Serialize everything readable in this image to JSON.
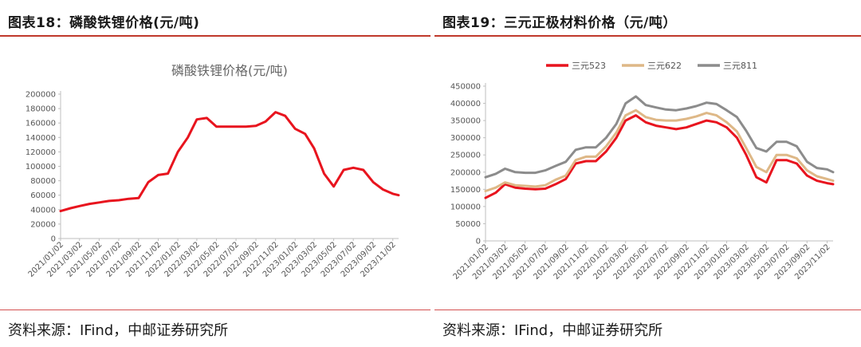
{
  "left_panel": {
    "header_title": "图表18：磷酸铁锂价格(元/吨)",
    "source": "资料来源：IFind，中邮证券研究所"
  },
  "right_panel": {
    "header_title": "图表19：三元正极材料价格（元/吨）",
    "source": "资料来源：IFind，中邮证券研究所"
  },
  "colors": {
    "red": "#e8141e",
    "tan": "#deb887",
    "gray": "#8c8c8c",
    "accent_rule": "#c0392b"
  },
  "chart_data": [
    {
      "type": "line",
      "title": "磷酸铁锂价格(元/吨)",
      "x_labels": [
        "2021/01/02",
        "2021/03/02",
        "2021/05/02",
        "2021/07/02",
        "2021/09/02",
        "2021/11/02",
        "2022/01/02",
        "2022/03/02",
        "2022/05/02",
        "2022/07/02",
        "2022/09/02",
        "2022/11/02",
        "2023/01/02",
        "2023/03/02",
        "2023/05/02",
        "2023/07/02",
        "2023/09/02",
        "2023/11/02"
      ],
      "y_ticks": [
        0,
        20000,
        40000,
        60000,
        80000,
        100000,
        120000,
        140000,
        160000,
        180000,
        200000
      ],
      "ylim": [
        0,
        200000
      ],
      "legend": "none",
      "series": [
        {
          "color": "#e8141e",
          "points": [
            [
              "2021/01/02",
              38000
            ],
            [
              "2021/02/02",
              42000
            ],
            [
              "2021/03/02",
              45000
            ],
            [
              "2021/04/02",
              48000
            ],
            [
              "2021/05/02",
              50000
            ],
            [
              "2021/06/02",
              52000
            ],
            [
              "2021/07/02",
              53000
            ],
            [
              "2021/08/02",
              55000
            ],
            [
              "2021/09/02",
              56000
            ],
            [
              "2021/10/02",
              78000
            ],
            [
              "2021/11/02",
              88000
            ],
            [
              "2021/12/02",
              90000
            ],
            [
              "2022/01/02",
              120000
            ],
            [
              "2022/02/02",
              140000
            ],
            [
              "2022/03/02",
              165000
            ],
            [
              "2022/04/02",
              167000
            ],
            [
              "2022/05/02",
              155000
            ],
            [
              "2022/06/02",
              155000
            ],
            [
              "2022/07/02",
              155000
            ],
            [
              "2022/08/02",
              155000
            ],
            [
              "2022/09/02",
              156000
            ],
            [
              "2022/10/02",
              162000
            ],
            [
              "2022/11/02",
              175000
            ],
            [
              "2022/12/02",
              170000
            ],
            [
              "2023/01/02",
              152000
            ],
            [
              "2023/02/02",
              145000
            ],
            [
              "2023/03/02",
              125000
            ],
            [
              "2023/04/02",
              90000
            ],
            [
              "2023/05/02",
              72000
            ],
            [
              "2023/06/02",
              95000
            ],
            [
              "2023/07/02",
              98000
            ],
            [
              "2023/08/02",
              95000
            ],
            [
              "2023/09/02",
              78000
            ],
            [
              "2023/10/02",
              68000
            ],
            [
              "2023/11/02",
              62000
            ],
            [
              "2023/11/20",
              60000
            ]
          ]
        }
      ]
    },
    {
      "type": "line",
      "title": "三元正极材料价格（元/吨）",
      "x_labels": [
        "2021/01/02",
        "2021/03/02",
        "2021/05/02",
        "2021/07/02",
        "2021/09/02",
        "2021/11/02",
        "2022/01/02",
        "2022/03/02",
        "2022/05/02",
        "2022/07/02",
        "2022/09/02",
        "2022/11/02",
        "2023/01/02",
        "2023/03/02",
        "2023/05/02",
        "2023/07/02",
        "2023/09/02",
        "2023/11/02"
      ],
      "y_ticks": [
        0,
        50000,
        100000,
        150000,
        200000,
        250000,
        300000,
        350000,
        400000,
        450000
      ],
      "ylim": [
        0,
        450000
      ],
      "legend": "top",
      "series": [
        {
          "name": "三元523",
          "color": "#e8141e",
          "points": [
            [
              "2021/01/02",
              125000
            ],
            [
              "2021/02/02",
              140000
            ],
            [
              "2021/03/02",
              165000
            ],
            [
              "2021/04/02",
              155000
            ],
            [
              "2021/05/02",
              152000
            ],
            [
              "2021/06/02",
              150000
            ],
            [
              "2021/07/02",
              152000
            ],
            [
              "2021/08/02",
              165000
            ],
            [
              "2021/09/02",
              180000
            ],
            [
              "2021/10/02",
              225000
            ],
            [
              "2021/11/02",
              232000
            ],
            [
              "2021/12/02",
              232000
            ],
            [
              "2022/01/02",
              260000
            ],
            [
              "2022/02/02",
              300000
            ],
            [
              "2022/03/02",
              350000
            ],
            [
              "2022/04/02",
              365000
            ],
            [
              "2022/05/02",
              345000
            ],
            [
              "2022/06/02",
              335000
            ],
            [
              "2022/07/02",
              330000
            ],
            [
              "2022/08/02",
              325000
            ],
            [
              "2022/09/02",
              330000
            ],
            [
              "2022/10/02",
              340000
            ],
            [
              "2022/11/02",
              350000
            ],
            [
              "2022/12/02",
              345000
            ],
            [
              "2023/01/02",
              330000
            ],
            [
              "2023/02/02",
              300000
            ],
            [
              "2023/03/02",
              250000
            ],
            [
              "2023/04/02",
              185000
            ],
            [
              "2023/05/02",
              170000
            ],
            [
              "2023/06/02",
              235000
            ],
            [
              "2023/07/02",
              235000
            ],
            [
              "2023/08/02",
              225000
            ],
            [
              "2023/09/02",
              190000
            ],
            [
              "2023/10/02",
              175000
            ],
            [
              "2023/11/02",
              168000
            ],
            [
              "2023/11/20",
              165000
            ]
          ]
        },
        {
          "name": "三元622",
          "color": "#deb887",
          "points": [
            [
              "2021/01/02",
              145000
            ],
            [
              "2021/02/02",
              155000
            ],
            [
              "2021/03/02",
              170000
            ],
            [
              "2021/04/02",
              162000
            ],
            [
              "2021/05/02",
              160000
            ],
            [
              "2021/06/02",
              158000
            ],
            [
              "2021/07/02",
              162000
            ],
            [
              "2021/08/02",
              178000
            ],
            [
              "2021/09/02",
              190000
            ],
            [
              "2021/10/02",
              235000
            ],
            [
              "2021/11/02",
              245000
            ],
            [
              "2021/12/02",
              245000
            ],
            [
              "2022/01/02",
              275000
            ],
            [
              "2022/02/02",
              315000
            ],
            [
              "2022/03/02",
              365000
            ],
            [
              "2022/04/02",
              380000
            ],
            [
              "2022/05/02",
              360000
            ],
            [
              "2022/06/02",
              352000
            ],
            [
              "2022/07/02",
              350000
            ],
            [
              "2022/08/02",
              350000
            ],
            [
              "2022/09/02",
              355000
            ],
            [
              "2022/10/02",
              362000
            ],
            [
              "2022/11/02",
              372000
            ],
            [
              "2022/12/02",
              365000
            ],
            [
              "2023/01/02",
              345000
            ],
            [
              "2023/02/02",
              318000
            ],
            [
              "2023/03/02",
              270000
            ],
            [
              "2023/04/02",
              215000
            ],
            [
              "2023/05/02",
              200000
            ],
            [
              "2023/06/02",
              250000
            ],
            [
              "2023/07/02",
              250000
            ],
            [
              "2023/08/02",
              240000
            ],
            [
              "2023/09/02",
              205000
            ],
            [
              "2023/10/02",
              188000
            ],
            [
              "2023/11/02",
              180000
            ],
            [
              "2023/11/20",
              175000
            ]
          ]
        },
        {
          "name": "三元811",
          "color": "#8c8c8c",
          "points": [
            [
              "2021/01/02",
              185000
            ],
            [
              "2021/02/02",
              195000
            ],
            [
              "2021/03/02",
              210000
            ],
            [
              "2021/04/02",
              200000
            ],
            [
              "2021/05/02",
              198000
            ],
            [
              "2021/06/02",
              198000
            ],
            [
              "2021/07/02",
              205000
            ],
            [
              "2021/08/02",
              218000
            ],
            [
              "2021/09/02",
              230000
            ],
            [
              "2021/10/02",
              265000
            ],
            [
              "2021/11/02",
              272000
            ],
            [
              "2021/12/02",
              272000
            ],
            [
              "2022/01/02",
              300000
            ],
            [
              "2022/02/02",
              340000
            ],
            [
              "2022/03/02",
              400000
            ],
            [
              "2022/04/02",
              420000
            ],
            [
              "2022/05/02",
              395000
            ],
            [
              "2022/06/02",
              388000
            ],
            [
              "2022/07/02",
              382000
            ],
            [
              "2022/08/02",
              380000
            ],
            [
              "2022/09/02",
              385000
            ],
            [
              "2022/10/02",
              392000
            ],
            [
              "2022/11/02",
              402000
            ],
            [
              "2022/12/02",
              398000
            ],
            [
              "2023/01/02",
              380000
            ],
            [
              "2023/02/02",
              360000
            ],
            [
              "2023/03/02",
              320000
            ],
            [
              "2023/04/02",
              270000
            ],
            [
              "2023/05/02",
              260000
            ],
            [
              "2023/06/02",
              288000
            ],
            [
              "2023/07/02",
              288000
            ],
            [
              "2023/08/02",
              275000
            ],
            [
              "2023/09/02",
              230000
            ],
            [
              "2023/10/02",
              212000
            ],
            [
              "2023/11/02",
              208000
            ],
            [
              "2023/11/20",
              200000
            ]
          ]
        }
      ]
    }
  ]
}
